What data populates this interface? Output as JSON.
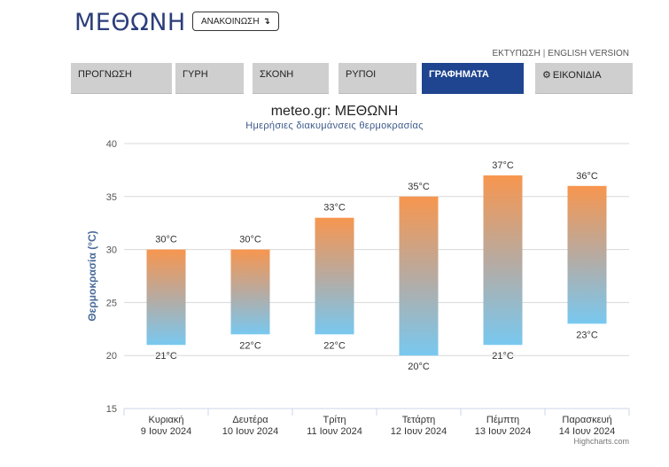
{
  "header": {
    "title": "ΜΕΘΩΝΗ",
    "announce_label": "ΑΝΑΚΟΙΝΩΣΗ",
    "announce_icon": "arrow-down-right-icon",
    "print_link": "ΕΚΤΥΠΩΣΗ",
    "separator": "|",
    "english_link": "ENGLISH VERSION"
  },
  "nav": {
    "tabs": [
      {
        "label": "ΠΡΟΓΝΩΣΗ",
        "active": false
      },
      {
        "label": "ΓΥΡΗ",
        "active": false
      },
      {
        "label": "ΣΚΟΝΗ",
        "active": false
      },
      {
        "label": "ΡΥΠΟΙ",
        "active": false
      },
      {
        "label": "ΓΡΑΦΗΜΑΤΑ",
        "active": true
      },
      {
        "label": "ΕΙΚΟΝΙΔΙΑ",
        "active": false,
        "icon": "gear-icon"
      }
    ]
  },
  "chart_data": {
    "type": "bar",
    "title": "meteo.gr: ΜΕΘΩΝΗ",
    "subtitle": "Ημερήσιες διακυμάνσεις θερμοκρασίας",
    "ylabel": "Θερμοκρασία (°C)",
    "ylim": [
      15,
      40
    ],
    "yticks": [
      15,
      20,
      25,
      30,
      35,
      40
    ],
    "grid": true,
    "categories": [
      {
        "day": "Κυριακή",
        "date": "9 Ιουν 2024"
      },
      {
        "day": "Δευτέρα",
        "date": "10 Ιουν 2024"
      },
      {
        "day": "Τρίτη",
        "date": "11 Ιουν 2024"
      },
      {
        "day": "Τετάρτη",
        "date": "12 Ιουν 2024"
      },
      {
        "day": "Πέμπτη",
        "date": "13 Ιουν 2024"
      },
      {
        "day": "Παρασκευή",
        "date": "14 Ιουν 2024"
      }
    ],
    "low": [
      21,
      22,
      22,
      20,
      21,
      23
    ],
    "high": [
      30,
      30,
      33,
      35,
      37,
      36
    ],
    "unit": "°C",
    "colors": {
      "high": "#f7964f",
      "mid": "#b8aaa0",
      "low": "#78c8f0"
    }
  },
  "credits": "Highcharts.com"
}
